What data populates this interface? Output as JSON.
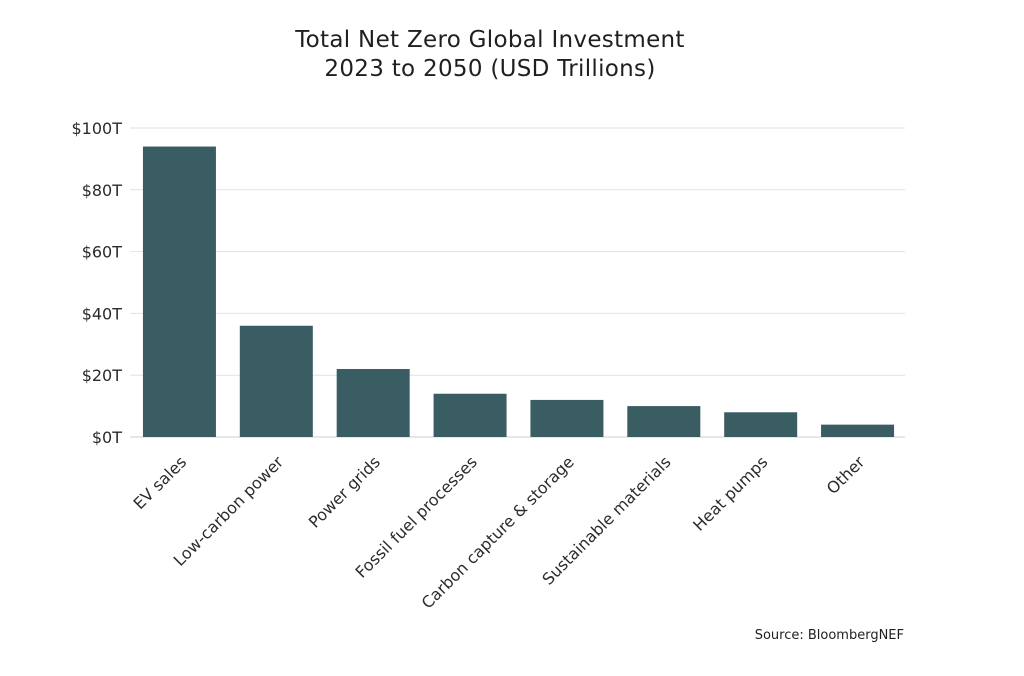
{
  "chart_data": {
    "type": "bar",
    "title_lines": [
      "Total Net Zero Global Investment",
      "2023 to 2050 (USD Trillions)"
    ],
    "categories": [
      "EV sales",
      "Low-carbon power",
      "Power grids",
      "Fossil fuel processes",
      "Carbon capture & storage",
      "Sustainable materials",
      "Heat pumps",
      "Other"
    ],
    "values": [
      94,
      36,
      22,
      14,
      12,
      10,
      8,
      4
    ],
    "y_ticks": [
      0,
      20,
      40,
      60,
      80,
      100
    ],
    "y_tick_labels": [
      "$0T",
      "$20T",
      "$40T",
      "$60T",
      "$80T",
      "$100T"
    ],
    "ylim": [
      0,
      100
    ],
    "xlabel": "",
    "ylabel": "",
    "grid": true,
    "bar_color": "#3a5c63",
    "source": "Source: BloombergNEF"
  }
}
